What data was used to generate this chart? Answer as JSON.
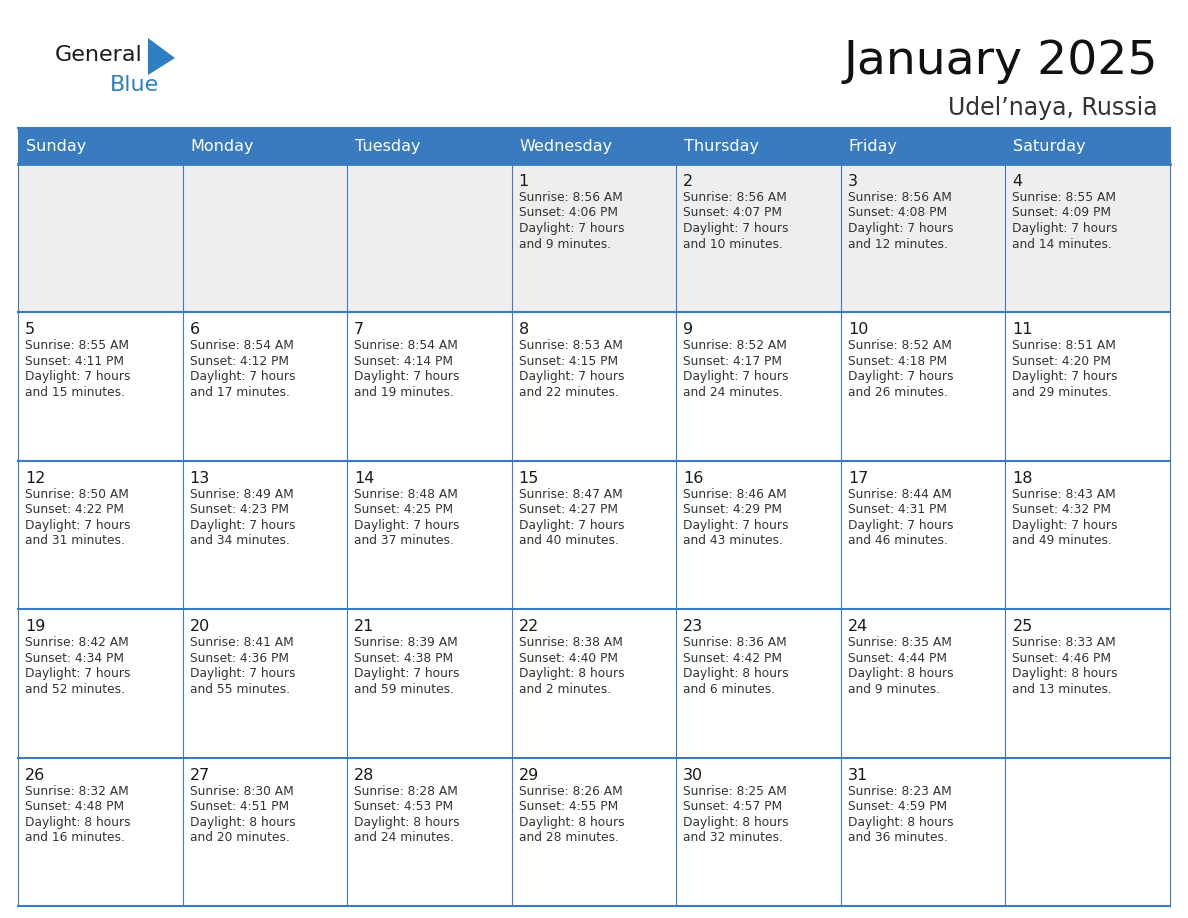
{
  "title": "January 2025",
  "subtitle": "Udel’naya, Russia",
  "header_bg": "#3a7abf",
  "header_text_color": "#ffffff",
  "cell_bg_light": "#eeeeee",
  "cell_bg_white": "#ffffff",
  "border_color": "#3a7abf",
  "day_headers": [
    "Sunday",
    "Monday",
    "Tuesday",
    "Wednesday",
    "Thursday",
    "Friday",
    "Saturday"
  ],
  "days": [
    {
      "day": 1,
      "col": 3,
      "row": 0,
      "sunrise": "8:56 AM",
      "sunset": "4:06 PM",
      "daylight_h": "7 hours",
      "daylight_m": "9 minutes."
    },
    {
      "day": 2,
      "col": 4,
      "row": 0,
      "sunrise": "8:56 AM",
      "sunset": "4:07 PM",
      "daylight_h": "7 hours",
      "daylight_m": "10 minutes."
    },
    {
      "day": 3,
      "col": 5,
      "row": 0,
      "sunrise": "8:56 AM",
      "sunset": "4:08 PM",
      "daylight_h": "7 hours",
      "daylight_m": "12 minutes."
    },
    {
      "day": 4,
      "col": 6,
      "row": 0,
      "sunrise": "8:55 AM",
      "sunset": "4:09 PM",
      "daylight_h": "7 hours",
      "daylight_m": "14 minutes."
    },
    {
      "day": 5,
      "col": 0,
      "row": 1,
      "sunrise": "8:55 AM",
      "sunset": "4:11 PM",
      "daylight_h": "7 hours",
      "daylight_m": "15 minutes."
    },
    {
      "day": 6,
      "col": 1,
      "row": 1,
      "sunrise": "8:54 AM",
      "sunset": "4:12 PM",
      "daylight_h": "7 hours",
      "daylight_m": "17 minutes."
    },
    {
      "day": 7,
      "col": 2,
      "row": 1,
      "sunrise": "8:54 AM",
      "sunset": "4:14 PM",
      "daylight_h": "7 hours",
      "daylight_m": "19 minutes."
    },
    {
      "day": 8,
      "col": 3,
      "row": 1,
      "sunrise": "8:53 AM",
      "sunset": "4:15 PM",
      "daylight_h": "7 hours",
      "daylight_m": "22 minutes."
    },
    {
      "day": 9,
      "col": 4,
      "row": 1,
      "sunrise": "8:52 AM",
      "sunset": "4:17 PM",
      "daylight_h": "7 hours",
      "daylight_m": "24 minutes."
    },
    {
      "day": 10,
      "col": 5,
      "row": 1,
      "sunrise": "8:52 AM",
      "sunset": "4:18 PM",
      "daylight_h": "7 hours",
      "daylight_m": "26 minutes."
    },
    {
      "day": 11,
      "col": 6,
      "row": 1,
      "sunrise": "8:51 AM",
      "sunset": "4:20 PM",
      "daylight_h": "7 hours",
      "daylight_m": "29 minutes."
    },
    {
      "day": 12,
      "col": 0,
      "row": 2,
      "sunrise": "8:50 AM",
      "sunset": "4:22 PM",
      "daylight_h": "7 hours",
      "daylight_m": "31 minutes."
    },
    {
      "day": 13,
      "col": 1,
      "row": 2,
      "sunrise": "8:49 AM",
      "sunset": "4:23 PM",
      "daylight_h": "7 hours",
      "daylight_m": "34 minutes."
    },
    {
      "day": 14,
      "col": 2,
      "row": 2,
      "sunrise": "8:48 AM",
      "sunset": "4:25 PM",
      "daylight_h": "7 hours",
      "daylight_m": "37 minutes."
    },
    {
      "day": 15,
      "col": 3,
      "row": 2,
      "sunrise": "8:47 AM",
      "sunset": "4:27 PM",
      "daylight_h": "7 hours",
      "daylight_m": "40 minutes."
    },
    {
      "day": 16,
      "col": 4,
      "row": 2,
      "sunrise": "8:46 AM",
      "sunset": "4:29 PM",
      "daylight_h": "7 hours",
      "daylight_m": "43 minutes."
    },
    {
      "day": 17,
      "col": 5,
      "row": 2,
      "sunrise": "8:44 AM",
      "sunset": "4:31 PM",
      "daylight_h": "7 hours",
      "daylight_m": "46 minutes."
    },
    {
      "day": 18,
      "col": 6,
      "row": 2,
      "sunrise": "8:43 AM",
      "sunset": "4:32 PM",
      "daylight_h": "7 hours",
      "daylight_m": "49 minutes."
    },
    {
      "day": 19,
      "col": 0,
      "row": 3,
      "sunrise": "8:42 AM",
      "sunset": "4:34 PM",
      "daylight_h": "7 hours",
      "daylight_m": "52 minutes."
    },
    {
      "day": 20,
      "col": 1,
      "row": 3,
      "sunrise": "8:41 AM",
      "sunset": "4:36 PM",
      "daylight_h": "7 hours",
      "daylight_m": "55 minutes."
    },
    {
      "day": 21,
      "col": 2,
      "row": 3,
      "sunrise": "8:39 AM",
      "sunset": "4:38 PM",
      "daylight_h": "7 hours",
      "daylight_m": "59 minutes."
    },
    {
      "day": 22,
      "col": 3,
      "row": 3,
      "sunrise": "8:38 AM",
      "sunset": "4:40 PM",
      "daylight_h": "8 hours",
      "daylight_m": "2 minutes."
    },
    {
      "day": 23,
      "col": 4,
      "row": 3,
      "sunrise": "8:36 AM",
      "sunset": "4:42 PM",
      "daylight_h": "8 hours",
      "daylight_m": "6 minutes."
    },
    {
      "day": 24,
      "col": 5,
      "row": 3,
      "sunrise": "8:35 AM",
      "sunset": "4:44 PM",
      "daylight_h": "8 hours",
      "daylight_m": "9 minutes."
    },
    {
      "day": 25,
      "col": 6,
      "row": 3,
      "sunrise": "8:33 AM",
      "sunset": "4:46 PM",
      "daylight_h": "8 hours",
      "daylight_m": "13 minutes."
    },
    {
      "day": 26,
      "col": 0,
      "row": 4,
      "sunrise": "8:32 AM",
      "sunset": "4:48 PM",
      "daylight_h": "8 hours",
      "daylight_m": "16 minutes."
    },
    {
      "day": 27,
      "col": 1,
      "row": 4,
      "sunrise": "8:30 AM",
      "sunset": "4:51 PM",
      "daylight_h": "8 hours",
      "daylight_m": "20 minutes."
    },
    {
      "day": 28,
      "col": 2,
      "row": 4,
      "sunrise": "8:28 AM",
      "sunset": "4:53 PM",
      "daylight_h": "8 hours",
      "daylight_m": "24 minutes."
    },
    {
      "day": 29,
      "col": 3,
      "row": 4,
      "sunrise": "8:26 AM",
      "sunset": "4:55 PM",
      "daylight_h": "8 hours",
      "daylight_m": "28 minutes."
    },
    {
      "day": 30,
      "col": 4,
      "row": 4,
      "sunrise": "8:25 AM",
      "sunset": "4:57 PM",
      "daylight_h": "8 hours",
      "daylight_m": "32 minutes."
    },
    {
      "day": 31,
      "col": 5,
      "row": 4,
      "sunrise": "8:23 AM",
      "sunset": "4:59 PM",
      "daylight_h": "8 hours",
      "daylight_m": "36 minutes."
    }
  ],
  "logo_text_general": "General",
  "logo_text_blue": "Blue",
  "logo_color_general": "#1a1a1a",
  "logo_color_blue": "#2e7ec2",
  "logo_triangle_color": "#2e7ec2",
  "text_color": "#333333",
  "day_num_color": "#1a1a1a"
}
